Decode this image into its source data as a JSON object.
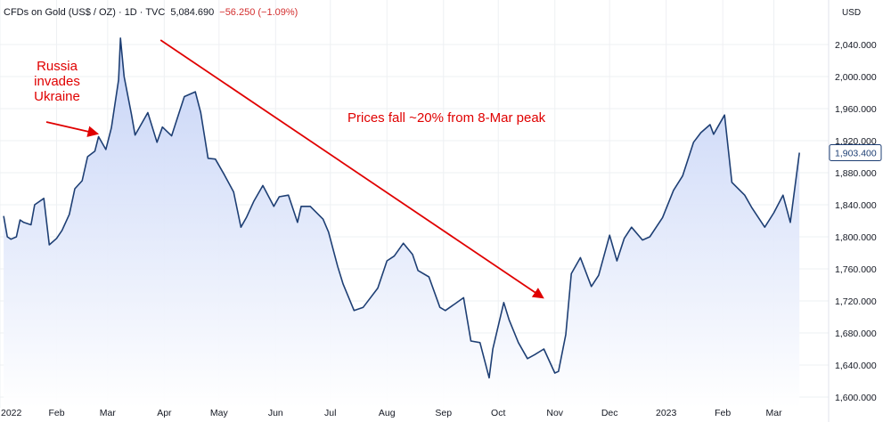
{
  "header": {
    "title": "CFDs on Gold (US$ / OZ) · 1D · TVC",
    "price": "5,084.690",
    "change": "−56.250 (−1.09%)"
  },
  "currency": "USD",
  "colors": {
    "line": "#1e3f74",
    "fill": "#c9d6f7",
    "annotation": "#e00000",
    "price_tag": "#1e3f74"
  },
  "chart_data": {
    "type": "area",
    "title": "CFDs on Gold (US$ / OZ)",
    "xlabel": "",
    "ylabel": "USD",
    "ylim": [
      1600,
      2060
    ],
    "x_range": [
      "2022-01-01",
      "2023-03-31"
    ],
    "grid": true,
    "y_ticks": [
      "1,600.000",
      "1,640.000",
      "1,680.000",
      "1,720.000",
      "1,760.000",
      "1,800.000",
      "1,840.000",
      "1,880.000",
      "1,920.000",
      "1,960.000",
      "2,000.000",
      "2,040.000"
    ],
    "x_ticks": [
      {
        "date": "2022-01-01",
        "label": "2022"
      },
      {
        "date": "2022-02-01",
        "label": "Feb"
      },
      {
        "date": "2022-03-01",
        "label": "Mar"
      },
      {
        "date": "2022-04-01",
        "label": "Apr"
      },
      {
        "date": "2022-05-01",
        "label": "May"
      },
      {
        "date": "2022-06-01",
        "label": "Jun"
      },
      {
        "date": "2022-07-01",
        "label": "Jul"
      },
      {
        "date": "2022-08-01",
        "label": "Aug"
      },
      {
        "date": "2022-09-01",
        "label": "Sep"
      },
      {
        "date": "2022-10-01",
        "label": "Oct"
      },
      {
        "date": "2022-11-01",
        "label": "Nov"
      },
      {
        "date": "2022-12-01",
        "label": "Dec"
      },
      {
        "date": "2023-01-01",
        "label": "2023"
      },
      {
        "date": "2023-02-01",
        "label": "Feb"
      },
      {
        "date": "2023-03-01",
        "label": "Mar"
      }
    ],
    "last_value": "1,903.400",
    "series": [
      {
        "x": [
          "2022-01-03",
          "2022-01-05",
          "2022-01-07",
          "2022-01-10",
          "2022-01-12",
          "2022-01-14",
          "2022-01-18",
          "2022-01-20",
          "2022-01-25",
          "2022-01-28",
          "2022-02-01",
          "2022-02-04",
          "2022-02-08",
          "2022-02-11",
          "2022-02-15",
          "2022-02-18",
          "2022-02-22",
          "2022-02-24",
          "2022-02-28",
          "2022-03-03",
          "2022-03-07",
          "2022-03-08",
          "2022-03-10",
          "2022-03-14",
          "2022-03-16",
          "2022-03-18",
          "2022-03-23",
          "2022-03-28",
          "2022-03-31",
          "2022-04-05",
          "2022-04-08",
          "2022-04-12",
          "2022-04-18",
          "2022-04-21",
          "2022-04-25",
          "2022-04-29",
          "2022-05-04",
          "2022-05-09",
          "2022-05-13",
          "2022-05-16",
          "2022-05-20",
          "2022-05-25",
          "2022-05-31",
          "2022-06-03",
          "2022-06-08",
          "2022-06-13",
          "2022-06-15",
          "2022-06-20",
          "2022-06-27",
          "2022-06-30",
          "2022-07-05",
          "2022-07-08",
          "2022-07-14",
          "2022-07-19",
          "2022-07-21",
          "2022-07-27",
          "2022-08-01",
          "2022-08-05",
          "2022-08-10",
          "2022-08-15",
          "2022-08-18",
          "2022-08-24",
          "2022-08-30",
          "2022-09-02",
          "2022-09-07",
          "2022-09-12",
          "2022-09-16",
          "2022-09-21",
          "2022-09-26",
          "2022-09-28",
          "2022-10-04",
          "2022-10-07",
          "2022-10-12",
          "2022-10-17",
          "2022-10-21",
          "2022-10-26",
          "2022-11-01",
          "2022-11-03",
          "2022-11-07",
          "2022-11-10",
          "2022-11-15",
          "2022-11-21",
          "2022-11-25",
          "2022-12-01",
          "2022-12-05",
          "2022-12-09",
          "2022-12-13",
          "2022-12-19",
          "2022-12-23",
          "2022-12-30",
          "2023-01-05",
          "2023-01-10",
          "2023-01-16",
          "2023-01-20",
          "2023-01-25",
          "2023-01-27",
          "2023-02-02",
          "2023-02-06",
          "2023-02-13",
          "2023-02-17",
          "2023-02-24",
          "2023-03-01",
          "2023-03-06",
          "2023-03-10",
          "2023-03-15"
        ],
        "y": [
          1826,
          1800,
          1797,
          1800,
          1821,
          1818,
          1815,
          1840,
          1848,
          1790,
          1798,
          1808,
          1828,
          1860,
          1870,
          1900,
          1907,
          1925,
          1909,
          1936,
          1996,
          2048,
          2000,
          1953,
          1927,
          1935,
          1955,
          1918,
          1937,
          1926,
          1947,
          1975,
          1981,
          1955,
          1898,
          1897,
          1877,
          1856,
          1812,
          1824,
          1844,
          1864,
          1838,
          1850,
          1852,
          1818,
          1838,
          1838,
          1822,
          1806,
          1763,
          1741,
          1708,
          1712,
          1718,
          1736,
          1770,
          1776,
          1792,
          1778,
          1758,
          1750,
          1712,
          1708,
          1716,
          1724,
          1670,
          1668,
          1624,
          1660,
          1718,
          1696,
          1668,
          1648,
          1653,
          1660,
          1630,
          1632,
          1678,
          1754,
          1774,
          1738,
          1752,
          1802,
          1770,
          1798,
          1812,
          1796,
          1800,
          1824,
          1858,
          1876,
          1918,
          1930,
          1940,
          1928,
          1952,
          1868,
          1852,
          1836,
          1812,
          1830,
          1852,
          1818,
          1905
        ]
      }
    ],
    "annotations": [
      {
        "text_lines": [
          "Russia",
          "invades",
          "Ukraine"
        ],
        "points_to": "2022-02-24"
      },
      {
        "text": "Prices fall ~20% from 8-Mar peak",
        "from": "2022-03-08",
        "to": "2022-11-01"
      }
    ]
  }
}
